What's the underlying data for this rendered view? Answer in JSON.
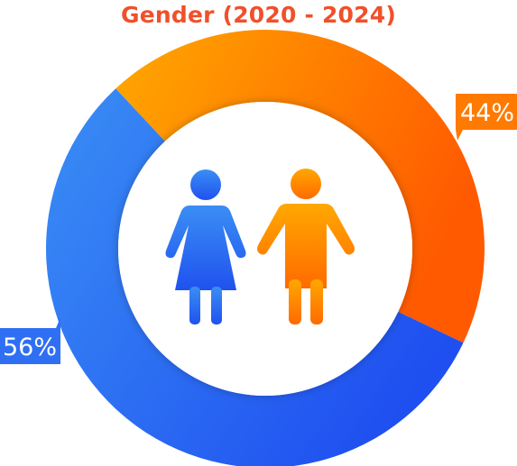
{
  "title": "Gender (2020 - 2024)",
  "colors": {
    "title": "#f0502a",
    "female_start": "#3a8ef5",
    "female_end": "#1f4ff0",
    "male_start": "#ffa800",
    "male_end": "#ff5a00"
  },
  "chart_data": {
    "type": "pie",
    "style": "donut",
    "title": "Gender (2020 - 2024)",
    "slices": [
      {
        "label": "",
        "value": 44,
        "display": "44%",
        "icon": "male-icon",
        "color": "#ff7a00"
      },
      {
        "label": "",
        "value": 56,
        "display": "56%",
        "icon": "female-icon",
        "color": "#2f6ff3"
      }
    ]
  }
}
